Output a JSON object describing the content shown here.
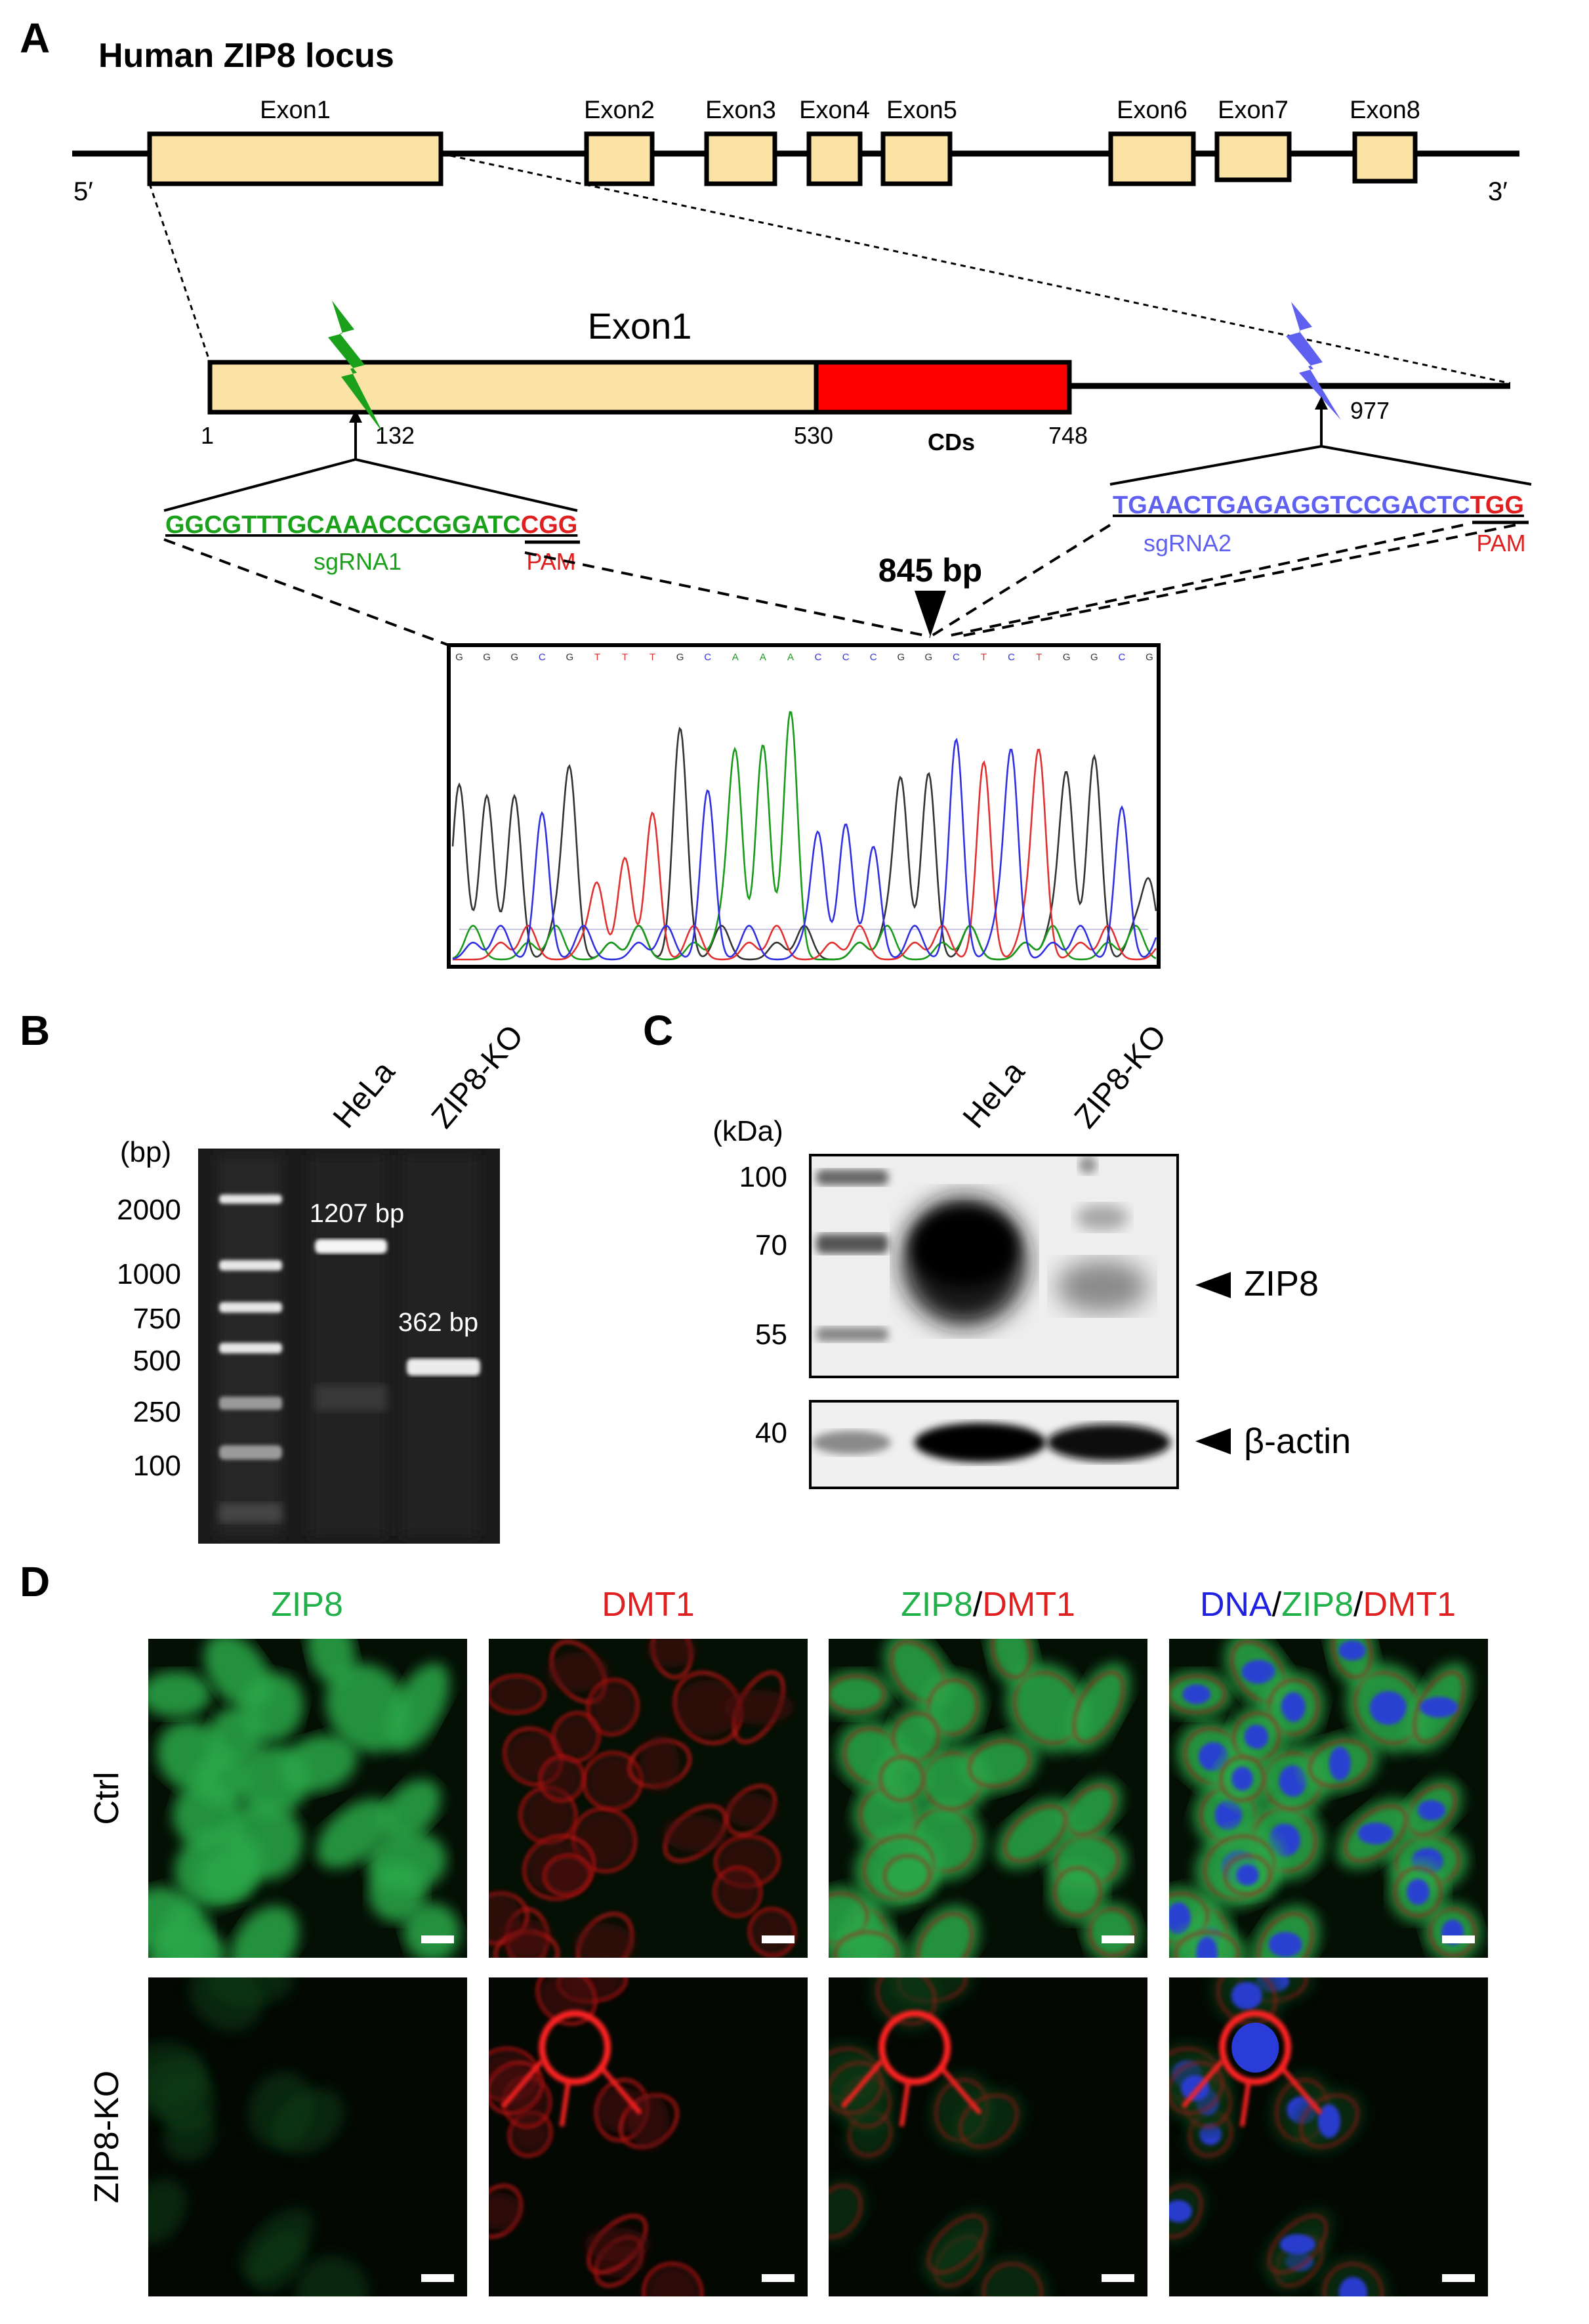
{
  "panels": {
    "a": "A",
    "b": "B",
    "c": "C",
    "d": "D"
  },
  "locus": {
    "title": "Human ZIP8 locus",
    "five_prime": "5′",
    "three_prime": "3′",
    "exons": [
      "Exon1",
      "Exon2",
      "Exon3",
      "Exon4",
      "Exon5",
      "Exon6",
      "Exon7",
      "Exon8"
    ]
  },
  "exon1_zoom": {
    "title": "Exon1",
    "positions": [
      "1",
      "132",
      "530",
      "748",
      "977"
    ],
    "cds_label": "CDs",
    "sgrna1": {
      "seq": "GGCGTTTGCAAACCCGGATC",
      "pam_seq": "CGG",
      "name": "sgRNA1",
      "pam": "PAM"
    },
    "sgrna2": {
      "seq": "TGAACTGAGAGGTCCGACTC",
      "pam_seq": "TGG",
      "name": "sgRNA2",
      "pam": "PAM"
    },
    "deletion_label": "845 bp",
    "trace_bases": "GGGCGTTTGCAAACCCGGCTCTGGCG"
  },
  "gel": {
    "lanes": [
      "HeLa",
      "ZIP8-KO"
    ],
    "unit": "(bp)",
    "ladder": [
      "2000",
      "1000",
      "750",
      "500",
      "250",
      "100"
    ],
    "band1": "1207 bp",
    "band2": "362 bp"
  },
  "western": {
    "lanes": [
      "HeLa",
      "ZIP8-KO"
    ],
    "unit": "(kDa)",
    "markers": [
      "100",
      "70",
      "55"
    ],
    "actin_marker": "40",
    "zip8": "ZIP8",
    "actin": "β-actin"
  },
  "micro": {
    "cols": {
      "zip8": "ZIP8",
      "dmt1": "DMT1",
      "merge_zip8": "ZIP8",
      "slash": "/",
      "merge_dmt1": "DMT1",
      "dna": "DNA"
    },
    "rows": [
      "Ctrl",
      "ZIP8-KO"
    ]
  },
  "colors": {
    "exon_fill": "#FBE3A6",
    "cds": "#FF0000",
    "sgrna1": "#1AA01A",
    "sgrna2": "#6060F0",
    "pam": "#E02020",
    "zip8_green": "#22B04A",
    "dmt1_red": "#E02020",
    "dna_blue": "#2020E0"
  }
}
